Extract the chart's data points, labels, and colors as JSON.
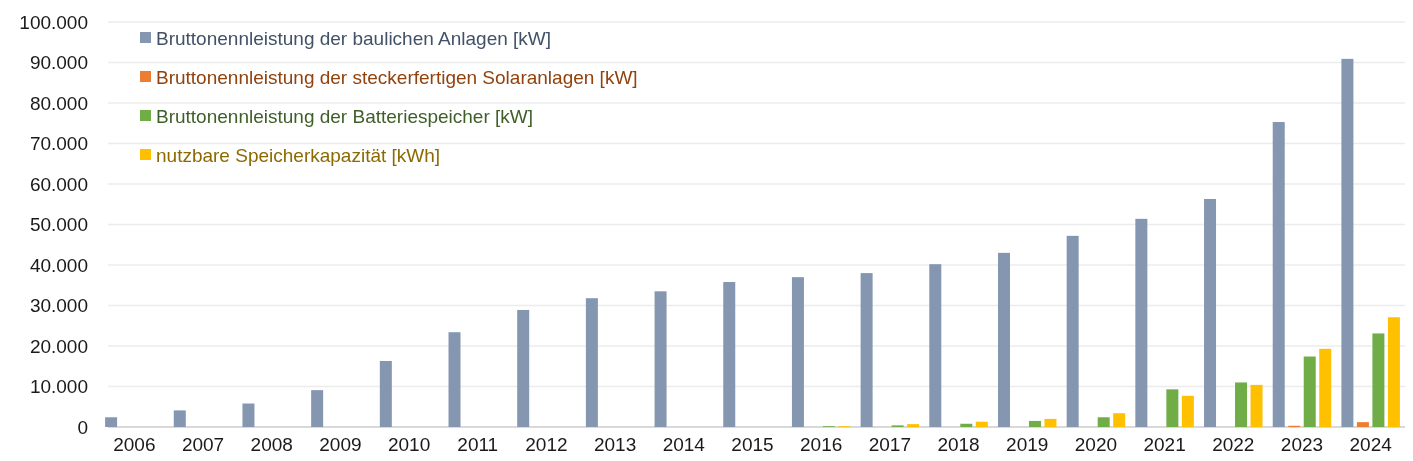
{
  "chart_data": {
    "type": "bar",
    "categories": [
      "2006",
      "2007",
      "2008",
      "2009",
      "2010",
      "2011",
      "2012",
      "2013",
      "2014",
      "2015",
      "2016",
      "2017",
      "2018",
      "2019",
      "2020",
      "2021",
      "2022",
      "2023",
      "2024"
    ],
    "series": [
      {
        "name": "Bruttonennleistung der baulichen Anlagen [kW]",
        "color": "#8496b0",
        "values": [
          2400,
          4100,
          5800,
          9100,
          16300,
          23400,
          28900,
          31800,
          33500,
          35800,
          37000,
          38000,
          40200,
          43000,
          47200,
          51400,
          56300,
          75300,
          90900
        ]
      },
      {
        "name": "Bruttonennleistung der steckerfertigen Solaranlagen [kW]",
        "color": "#ed7d31",
        "values": [
          null,
          null,
          null,
          null,
          null,
          null,
          null,
          null,
          null,
          null,
          0,
          0,
          0,
          0,
          0,
          0,
          0,
          300,
          1200
        ]
      },
      {
        "name": "Bruttonennleistung der Batteriespeicher [kW]",
        "color": "#70ad47",
        "values": [
          null,
          null,
          null,
          null,
          null,
          null,
          null,
          null,
          null,
          null,
          200,
          400,
          800,
          1500,
          2400,
          9300,
          11000,
          17400,
          23100
        ]
      },
      {
        "name": "nutzbare Speicherkapazität [kWh]",
        "color": "#ffc000",
        "values": [
          null,
          null,
          null,
          null,
          null,
          null,
          null,
          null,
          null,
          null,
          200,
          700,
          1300,
          2000,
          3400,
          7700,
          10400,
          19300,
          27100
        ]
      }
    ],
    "ylim": [
      0,
      100000
    ],
    "yticks": [
      {
        "value": 0,
        "label": "0"
      },
      {
        "value": 10000,
        "label": "10.000"
      },
      {
        "value": 20000,
        "label": "20.000"
      },
      {
        "value": 30000,
        "label": "30.000"
      },
      {
        "value": 40000,
        "label": "40.000"
      },
      {
        "value": 50000,
        "label": "50.000"
      },
      {
        "value": 60000,
        "label": "60.000"
      },
      {
        "value": 70000,
        "label": "70.000"
      },
      {
        "value": 80000,
        "label": "80.000"
      },
      {
        "value": 90000,
        "label": "90.000"
      },
      {
        "value": 100000,
        "label": "100.000"
      }
    ],
    "grid": "y",
    "legend": "top left"
  }
}
